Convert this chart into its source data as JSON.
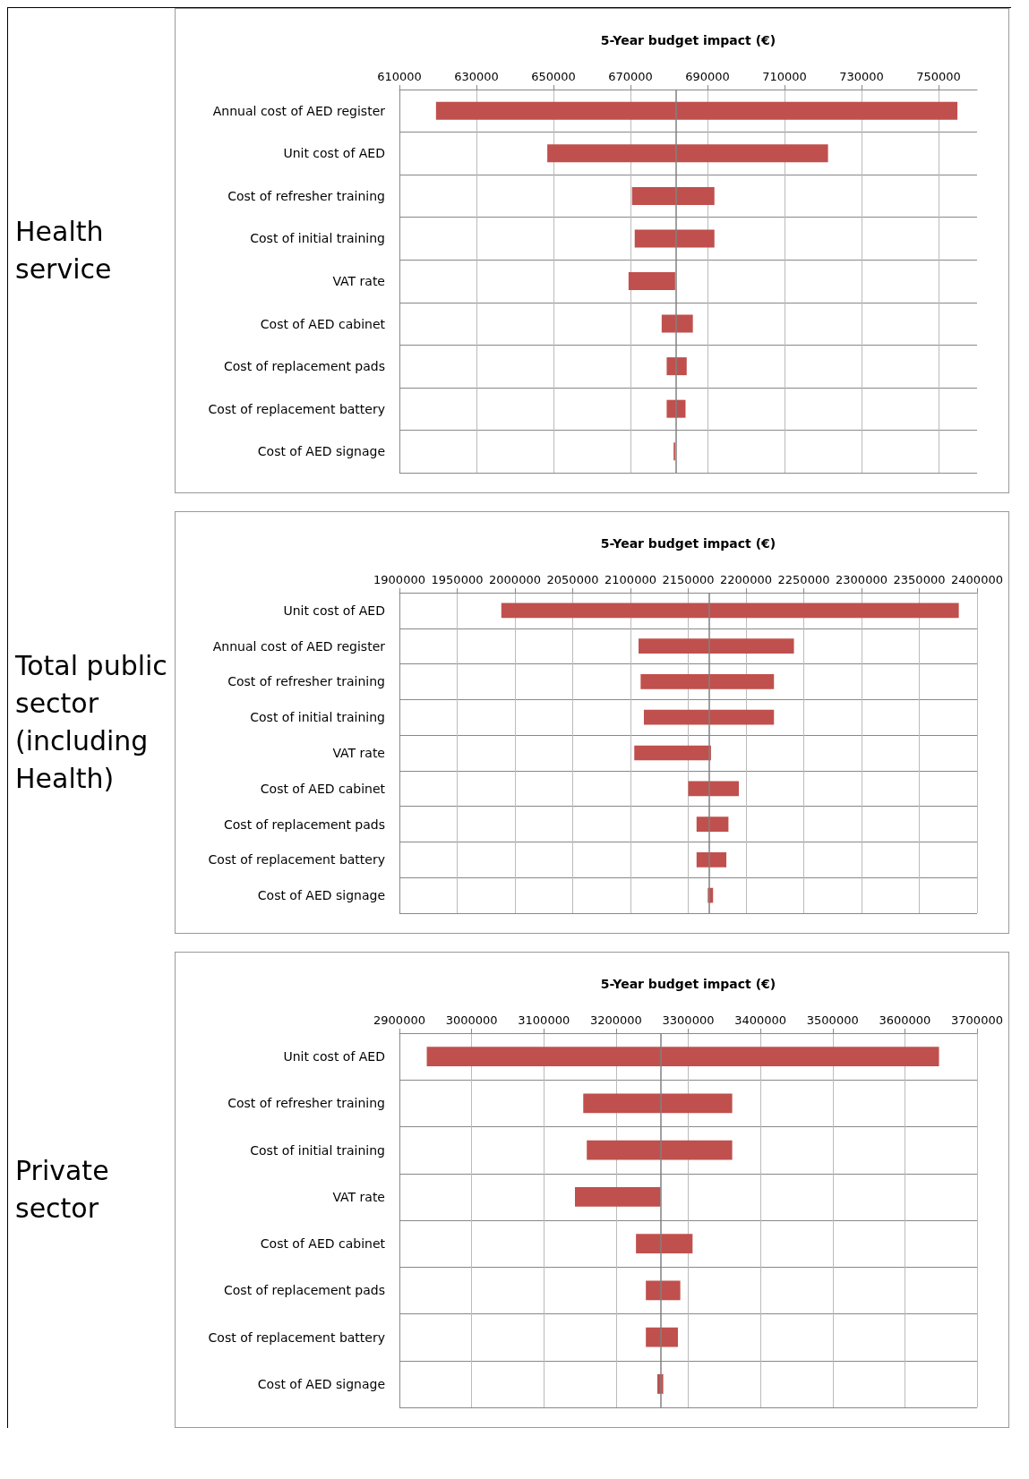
{
  "chart_data": [
    {
      "type": "bar",
      "orientation": "horizontal",
      "title": "Health service",
      "xlabel": "5-Year budget impact (€)",
      "color": "#c0504d",
      "grid": true,
      "categories": [
        "Annual cost of AED register",
        "Unit cost of AED",
        "Cost of refresher training",
        "Cost of initial training",
        "VAT rate",
        "Cost of AED cabinet",
        "Cost of replacement pads",
        "Cost of replacement battery",
        "Cost of AED signage"
      ],
      "base": [
        619500,
        648400,
        670400,
        671100,
        669500,
        678100,
        679400,
        679400,
        681200
      ],
      "values": [
        135400,
        72900,
        21400,
        20700,
        12100,
        8100,
        5200,
        4900,
        400
      ],
      "xlim": [
        610000,
        760000
      ],
      "xticks": [
        610000,
        630000,
        650000,
        670000,
        690000,
        710000,
        730000,
        750000
      ],
      "ref_lines": [
        {
          "axis": "x",
          "value": 681700,
          "color": "#808080"
        }
      ]
    },
    {
      "type": "bar",
      "orientation": "horizontal",
      "title": "Total public sector (including Health)",
      "xlabel": "5-Year budget impact (€)",
      "color": "#c0504d",
      "grid": true,
      "categories": [
        "Unit cost of AED",
        "Annual cost of AED register",
        "Cost of refresher training",
        "Cost of initial training",
        "VAT rate",
        "Cost of AED cabinet",
        "Cost of replacement pads",
        "Cost of replacement battery",
        "Cost of AED signage"
      ],
      "base": [
        1988200,
        2107000,
        2108800,
        2111600,
        2103300,
        2150000,
        2157200,
        2157200,
        2166900
      ],
      "values": [
        396000,
        134500,
        115400,
        112600,
        66400,
        43800,
        27600,
        25800,
        4600
      ],
      "xlim": [
        1900000,
        2400000
      ],
      "xticks": [
        1900000,
        1950000,
        2000000,
        2050000,
        2100000,
        2150000,
        2200000,
        2250000,
        2300000,
        2350000,
        2400000
      ],
      "ref_lines": [
        {
          "axis": "x",
          "value": 2168300,
          "color": "#808080"
        }
      ]
    },
    {
      "type": "bar",
      "orientation": "horizontal",
      "title": "Private sector",
      "xlabel": "5-Year budget impact (€)",
      "color": "#c0504d",
      "grid": true,
      "categories": [
        "Unit cost of AED",
        "Cost of refresher training",
        "Cost of initial training",
        "VAT rate",
        "Cost of AED cabinet",
        "Cost of replacement pads",
        "Cost of replacement battery",
        "Cost of AED signage"
      ],
      "base": [
        2937900,
        3154600,
        3159500,
        3143100,
        3227600,
        3241300,
        3241300,
        3257200
      ],
      "values": [
        709400,
        206300,
        201400,
        118500,
        78400,
        47700,
        44400,
        8200
      ],
      "xlim": [
        2900000,
        3700000
      ],
      "xticks": [
        2900000,
        3000000,
        3100000,
        3200000,
        3300000,
        3400000,
        3500000,
        3600000,
        3700000
      ],
      "ref_lines": [
        {
          "axis": "x",
          "value": 3261600,
          "color": "#808080"
        }
      ]
    }
  ]
}
